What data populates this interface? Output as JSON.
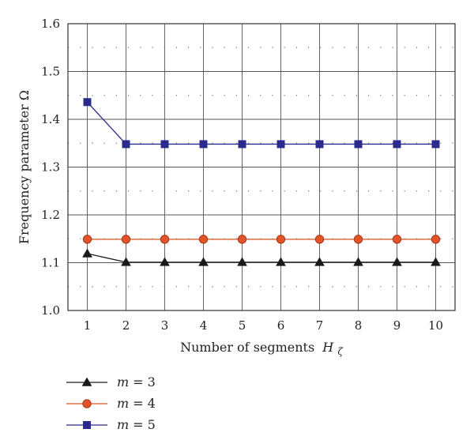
{
  "chart_data": {
    "type": "line",
    "xlabel": "Number of segments",
    "xlabel_symbol": "H",
    "xlabel_subscript": "ζ",
    "ylabel": "Frequency parameter Ω",
    "x": [
      1,
      2,
      3,
      4,
      5,
      6,
      7,
      8,
      9,
      10
    ],
    "xticks": [
      "1",
      "2",
      "3",
      "4",
      "5",
      "6",
      "7",
      "8",
      "9",
      "10"
    ],
    "xlim": [
      0.5,
      10.5
    ],
    "ylim": [
      1.0,
      1.6
    ],
    "yticks": [
      "1.0",
      "1.1",
      "1.2",
      "1.3",
      "1.4",
      "1.5",
      "1.6"
    ],
    "grid": "major-solid-minor-dotted",
    "legend_position": "bottom-left-below-plot",
    "series": [
      {
        "name": "m = 3",
        "name_var": "m",
        "name_value": "= 3",
        "marker": "triangle",
        "color": "#1a1a1a",
        "values": [
          1.119,
          1.101,
          1.101,
          1.101,
          1.101,
          1.101,
          1.101,
          1.101,
          1.101,
          1.101
        ]
      },
      {
        "name": "m = 4",
        "name_var": "m",
        "name_value": "= 4",
        "marker": "circle",
        "color": "#d9531e",
        "values": [
          1.149,
          1.149,
          1.149,
          1.149,
          1.149,
          1.149,
          1.149,
          1.149,
          1.149,
          1.149
        ]
      },
      {
        "name": "m = 5",
        "name_var": "m",
        "name_value": "= 5",
        "marker": "square",
        "color": "#2b2b8f",
        "values": [
          1.436,
          1.348,
          1.348,
          1.348,
          1.348,
          1.348,
          1.348,
          1.348,
          1.348,
          1.348
        ]
      }
    ]
  }
}
